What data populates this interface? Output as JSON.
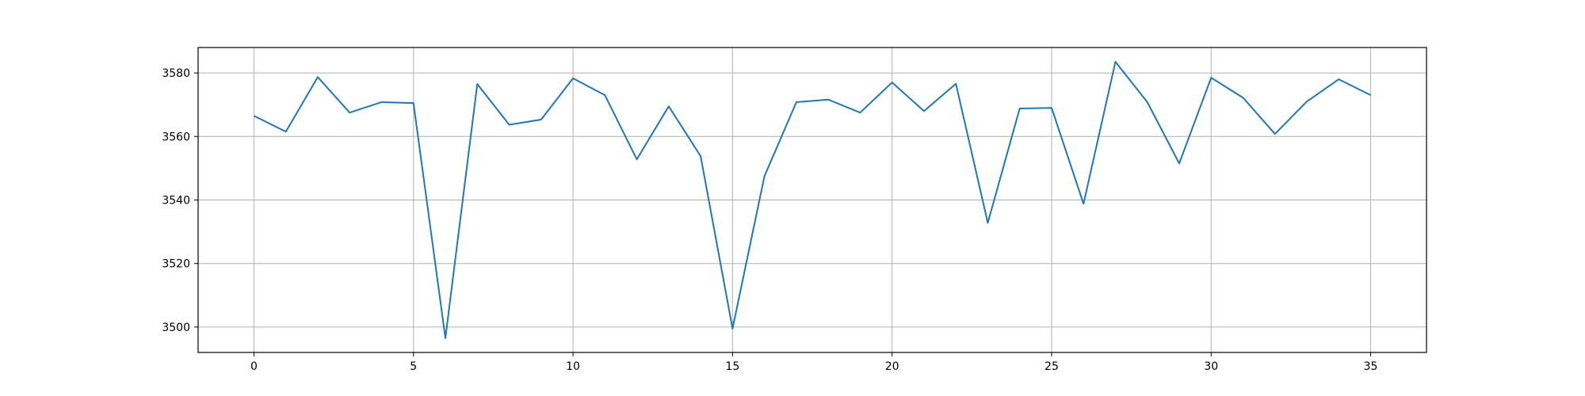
{
  "chart_data": {
    "type": "line",
    "title": "",
    "xlabel": "",
    "ylabel": "",
    "grid": true,
    "legend": "none",
    "xlim": [
      -1.75,
      36.75
    ],
    "ylim": [
      3492,
      3588
    ],
    "xticks": [
      0,
      5,
      10,
      15,
      20,
      25,
      30,
      35
    ],
    "yticks": [
      3500,
      3520,
      3540,
      3560,
      3580
    ],
    "xtick_labels": [
      "0",
      "5",
      "10",
      "15",
      "20",
      "25",
      "30",
      "35"
    ],
    "ytick_labels": [
      "3500",
      "3520",
      "3540",
      "3560",
      "3580"
    ],
    "series": [
      {
        "color": "#1f77b4",
        "x": [
          0,
          1,
          2,
          3,
          4,
          5,
          6,
          7,
          8,
          9,
          10,
          11,
          12,
          13,
          14,
          15,
          16,
          17,
          18,
          19,
          20,
          21,
          22,
          23,
          24,
          25,
          26,
          27,
          28,
          29,
          30,
          31,
          32,
          33,
          34,
          35
        ],
        "y": [
          3566.5,
          3561.5,
          3578.7,
          3567.5,
          3570.8,
          3570.5,
          3496.5,
          3576.5,
          3563.7,
          3565.3,
          3578.3,
          3573.0,
          3552.8,
          3569.5,
          3553.8,
          3499.5,
          3547.5,
          3570.8,
          3571.6,
          3567.5,
          3577.0,
          3568.0,
          3576.6,
          3532.8,
          3568.8,
          3569.0,
          3538.8,
          3583.5,
          3570.8,
          3551.5,
          3578.5,
          3572.2,
          3560.8,
          3571.0,
          3578.0,
          3573.0
        ]
      }
    ]
  }
}
